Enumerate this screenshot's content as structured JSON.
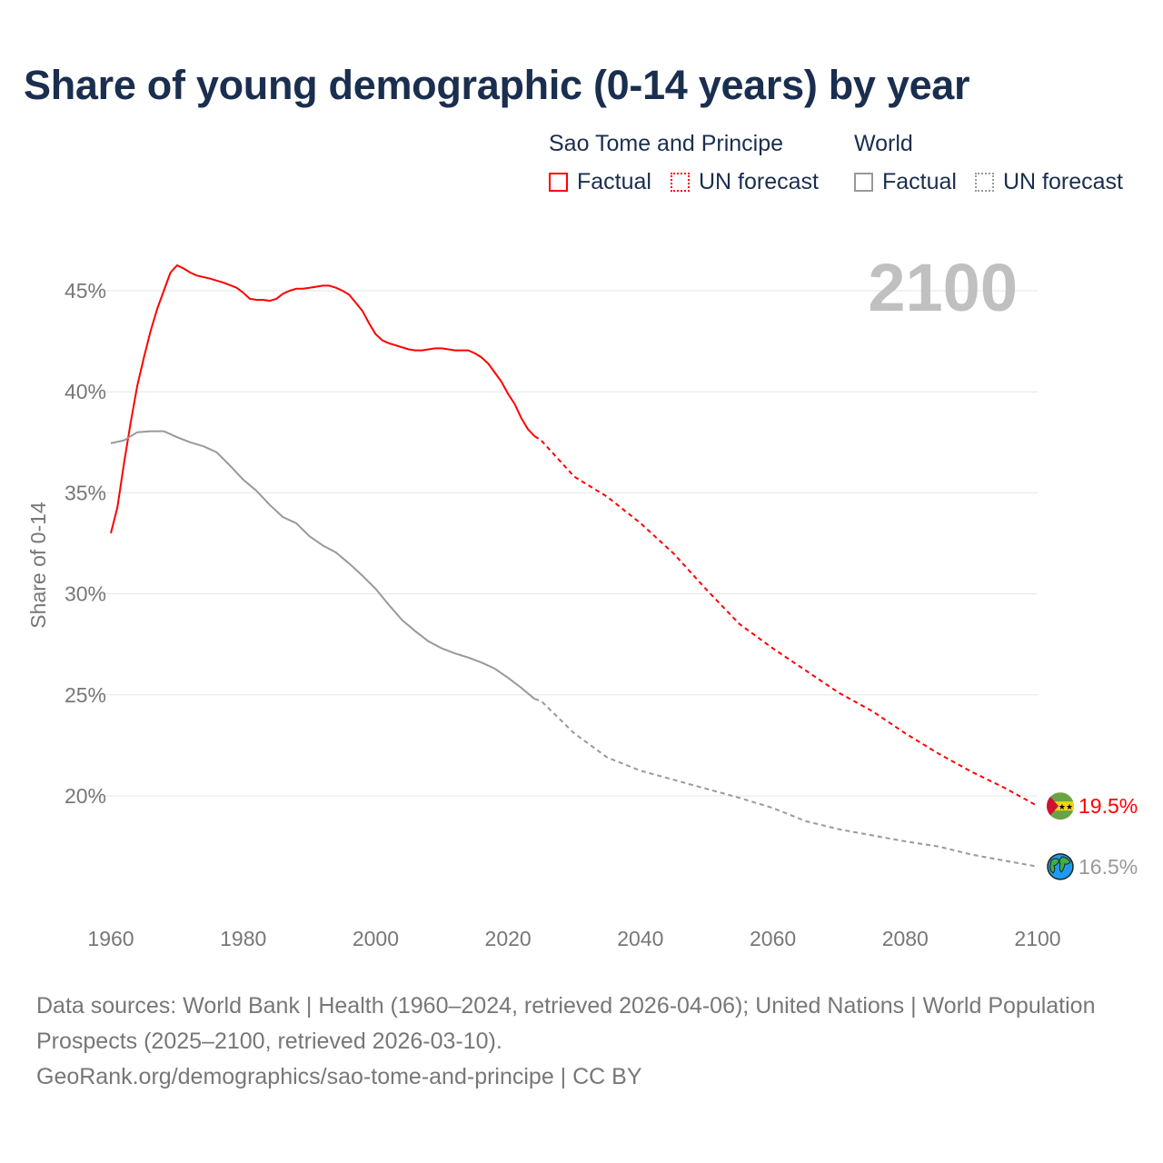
{
  "chart_data": {
    "type": "line",
    "title": "Share of young demographic (0-14 years) by year",
    "xlabel": "",
    "ylabel": "Share of 0-14",
    "xlim": [
      1960,
      2100
    ],
    "ylim": [
      15.5,
      47.5
    ],
    "x_ticks": [
      1960,
      1980,
      2000,
      2020,
      2040,
      2060,
      2080,
      2100
    ],
    "x_tick_labels": [
      "1960",
      "1980",
      "2000",
      "2020",
      "2040",
      "2060",
      "2080",
      "2100"
    ],
    "y_ticks": [
      20,
      25,
      30,
      35,
      40,
      45
    ],
    "y_tick_labels": [
      "20%",
      "25%",
      "30%",
      "35%",
      "40%",
      "45%"
    ],
    "grid": true,
    "year_overlay": "2100",
    "legend": {
      "placement": "top-right",
      "groups": [
        {
          "name": "Sao Tome and Principe",
          "items": [
            "Factual",
            "UN forecast"
          ]
        },
        {
          "name": "World",
          "items": [
            "Factual",
            "UN forecast"
          ]
        }
      ]
    },
    "series": [
      {
        "name": "Sao Tome and Principe - Factual",
        "color": "#ff0000",
        "style": "solid",
        "x": [
          1960,
          1961,
          1962,
          1963,
          1964,
          1965,
          1966,
          1967,
          1968,
          1969,
          1970,
          1971,
          1972,
          1973,
          1975,
          1977,
          1979,
          1980,
          1981,
          1982,
          1983,
          1984,
          1985,
          1986,
          1987,
          1988,
          1989,
          1990,
          1991,
          1992,
          1993,
          1994,
          1995,
          1996,
          1997,
          1998,
          1999,
          2000,
          2001,
          2002,
          2003,
          2004,
          2005,
          2006,
          2007,
          2008,
          2009,
          2010,
          2011,
          2012,
          2013,
          2014,
          2015,
          2016,
          2017,
          2018,
          2019,
          2020,
          2021,
          2022,
          2023,
          2024
        ],
        "values": [
          33.0,
          34.3,
          36.5,
          38.5,
          40.3,
          41.7,
          43.0,
          44.1,
          45.0,
          45.9,
          46.26,
          46.1,
          45.9,
          45.75,
          45.6,
          45.4,
          45.15,
          44.9,
          44.6,
          44.55,
          44.55,
          44.5,
          44.6,
          44.85,
          45.0,
          45.1,
          45.1,
          45.15,
          45.2,
          45.25,
          45.25,
          45.15,
          45.0,
          44.8,
          44.4,
          44.0,
          43.4,
          42.85,
          42.55,
          42.4,
          42.3,
          42.2,
          42.1,
          42.05,
          42.05,
          42.1,
          42.15,
          42.15,
          42.1,
          42.05,
          42.05,
          42.05,
          41.9,
          41.7,
          41.4,
          40.95,
          40.5,
          39.9,
          39.4,
          38.7,
          38.15,
          37.8
        ]
      },
      {
        "name": "Sao Tome and Principe - UN forecast",
        "color": "#ff0000",
        "style": "dashed",
        "x": [
          2024,
          2025,
          2030,
          2035,
          2040,
          2045,
          2050,
          2055,
          2060,
          2065,
          2070,
          2075,
          2080,
          2085,
          2090,
          2095,
          2100
        ],
        "values": [
          37.8,
          37.6,
          35.8,
          34.8,
          33.5,
          32.0,
          30.2,
          28.5,
          27.3,
          26.2,
          25.1,
          24.2,
          23.1,
          22.1,
          21.2,
          20.4,
          19.5
        ],
        "end_label": "19.5%",
        "end_icon": "sao-tome-flag"
      },
      {
        "name": "World - Factual",
        "color": "#999999",
        "style": "solid",
        "x": [
          1960,
          1962,
          1964,
          1966,
          1968,
          1970,
          1972,
          1974,
          1976,
          1978,
          1980,
          1982,
          1984,
          1986,
          1988,
          1990,
          1992,
          1994,
          1996,
          1998,
          2000,
          2002,
          2004,
          2006,
          2008,
          2010,
          2012,
          2014,
          2016,
          2018,
          2020,
          2022,
          2024
        ],
        "values": [
          37.45,
          37.6,
          38.0,
          38.05,
          38.05,
          37.75,
          37.5,
          37.3,
          37.0,
          36.35,
          35.65,
          35.1,
          34.4,
          33.8,
          33.5,
          32.85,
          32.4,
          32.05,
          31.5,
          30.9,
          30.25,
          29.45,
          28.7,
          28.15,
          27.65,
          27.3,
          27.05,
          26.85,
          26.6,
          26.3,
          25.85,
          25.35,
          24.8
        ]
      },
      {
        "name": "World - UN forecast",
        "color": "#999999",
        "style": "dashed",
        "x": [
          2024,
          2025,
          2030,
          2035,
          2040,
          2045,
          2050,
          2055,
          2060,
          2065,
          2070,
          2075,
          2080,
          2085,
          2090,
          2095,
          2100
        ],
        "values": [
          24.8,
          24.7,
          23.1,
          21.9,
          21.25,
          20.8,
          20.35,
          19.9,
          19.4,
          18.75,
          18.35,
          18.05,
          17.75,
          17.5,
          17.1,
          16.8,
          16.5
        ],
        "end_label": "16.5%",
        "end_icon": "globe"
      }
    ]
  },
  "legend": {
    "group1": "Sao Tome and Principe",
    "group2": "World",
    "factual": "Factual",
    "forecast": "UN forecast"
  },
  "sources": {
    "line1": "Data sources: World Bank | Health (1960–2024, retrieved 2026-04-06); United Nations | World Population Prospects (2025–2100, retrieved 2026-03-10).",
    "line2": "GeoRank.org/demographics/sao-tome-and-principe | CC BY"
  }
}
